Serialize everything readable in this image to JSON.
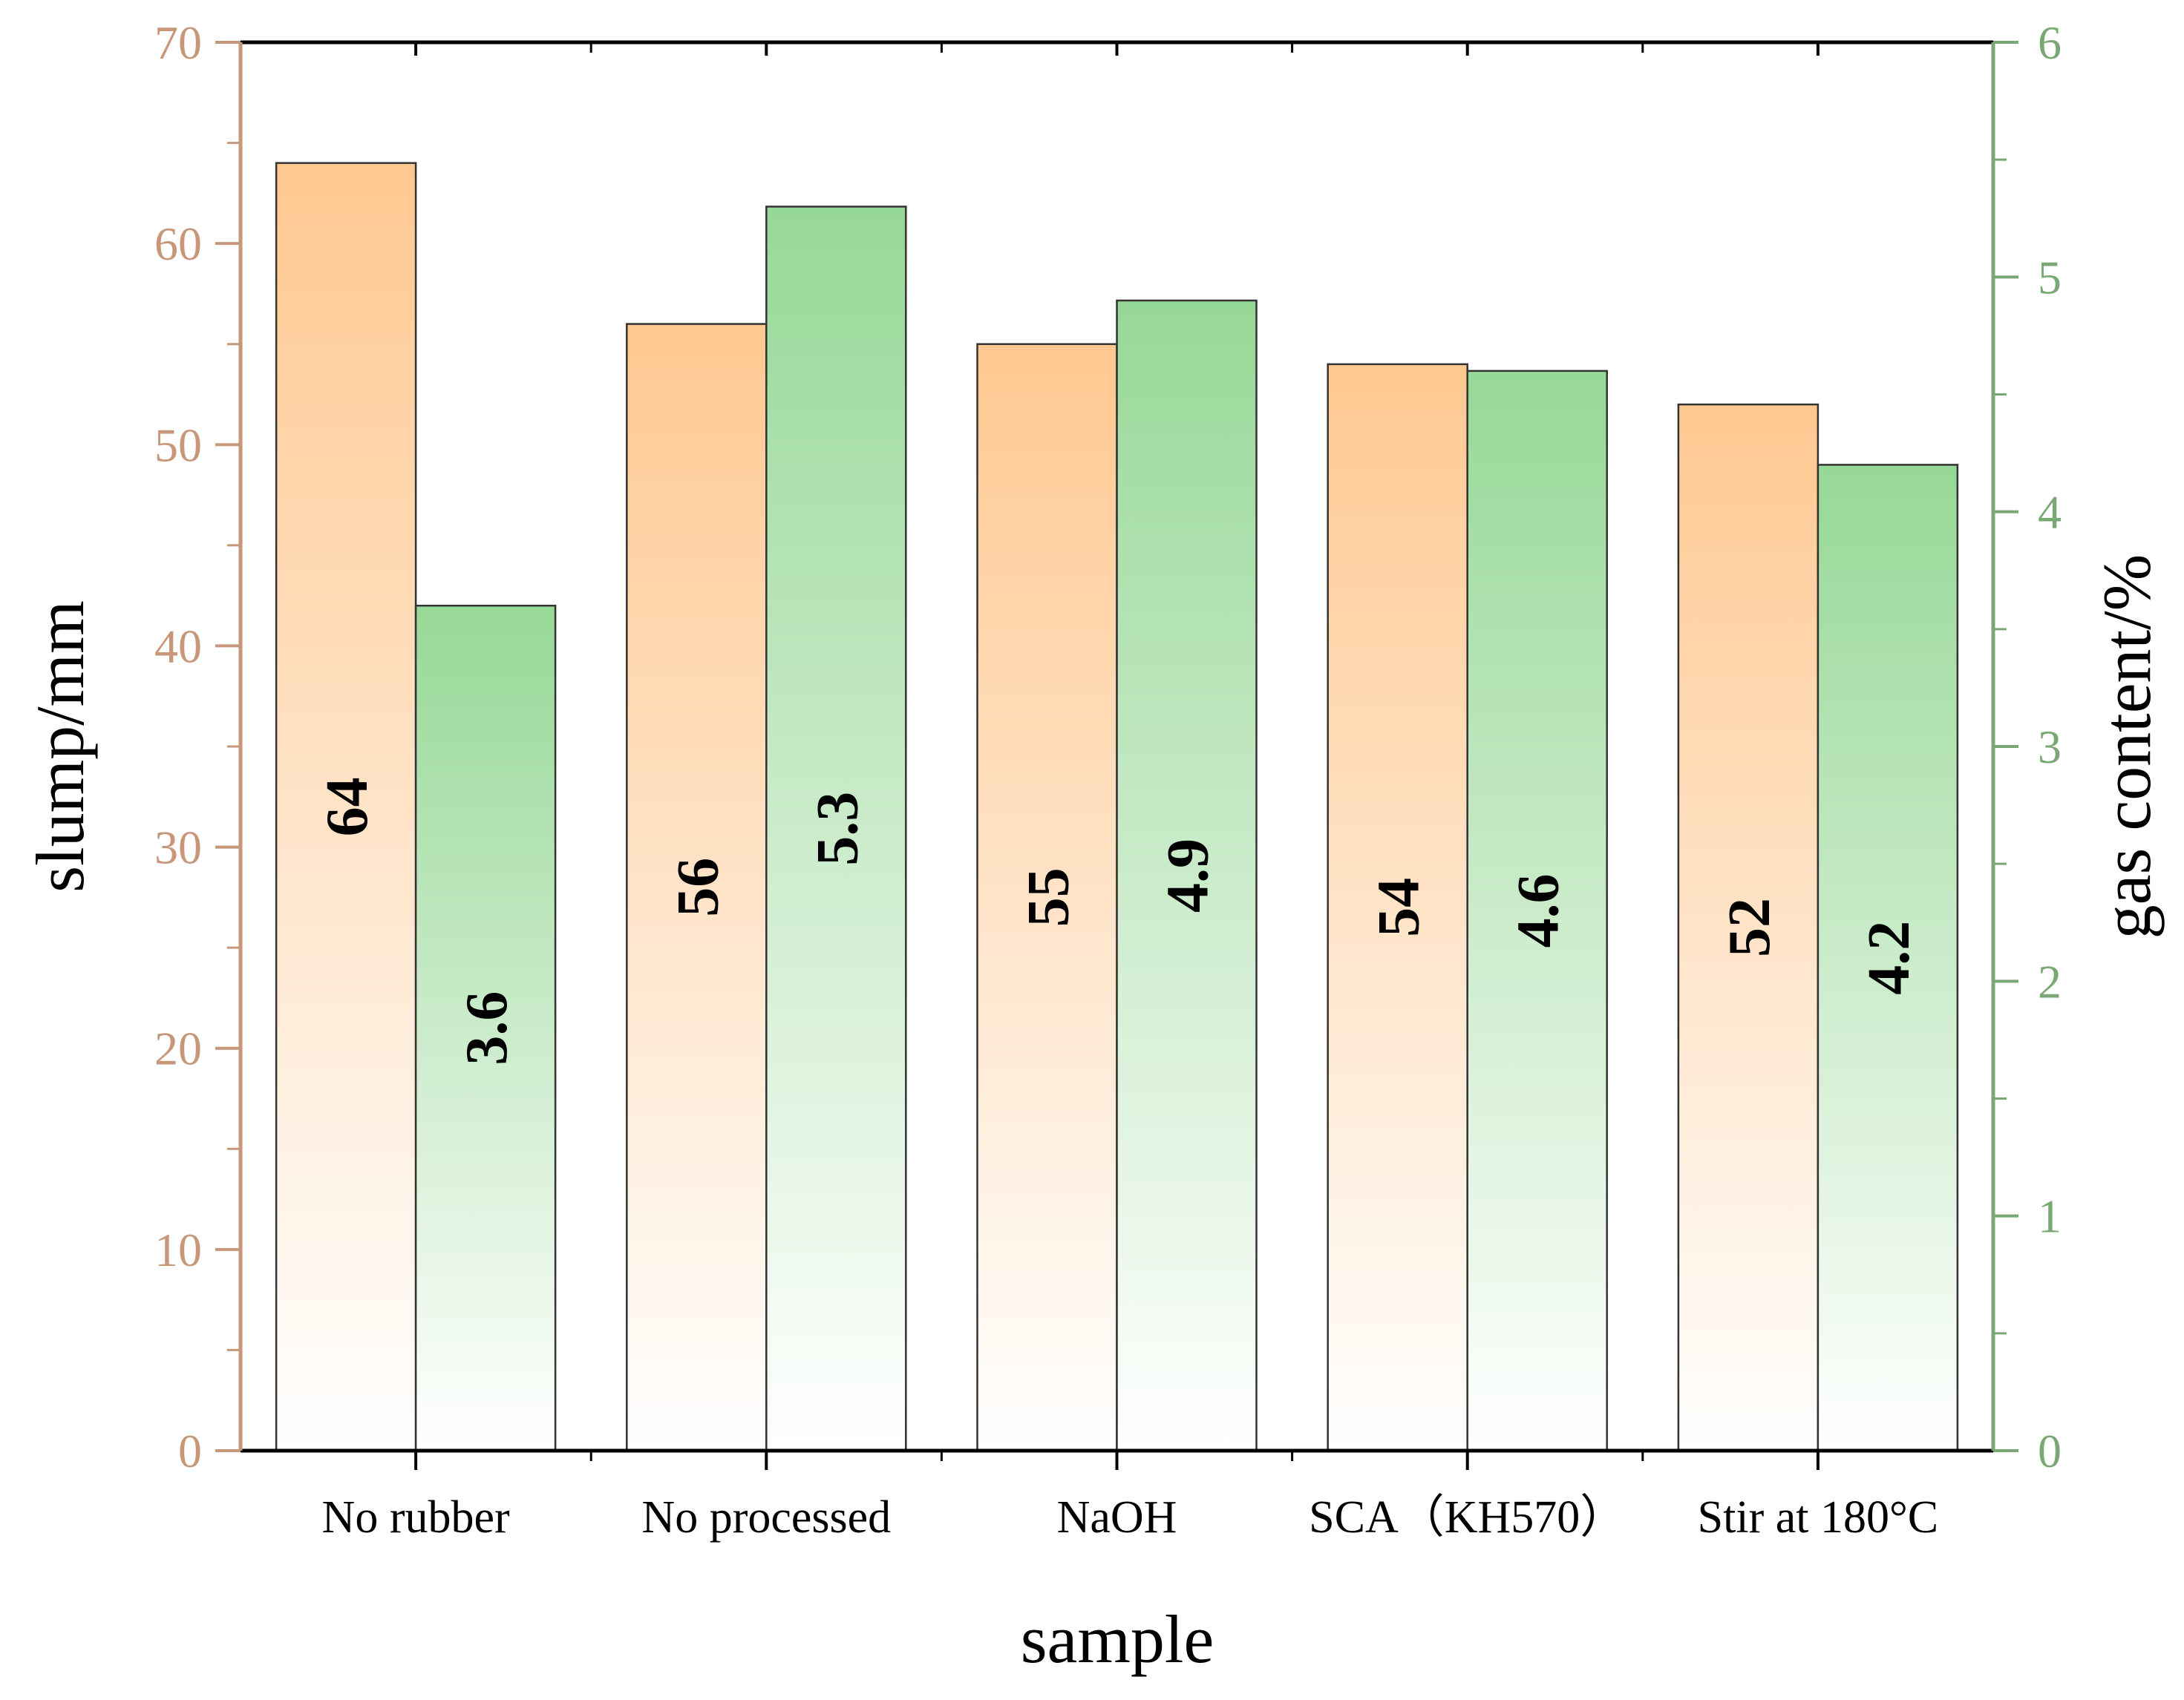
{
  "chart_data": {
    "type": "bar",
    "title": "",
    "xlabel": "sample",
    "categories": [
      "No rubber",
      "No processed",
      "NaOH",
      "SCA（KH570）",
      "Stir at 180°C"
    ],
    "series": [
      {
        "name": "slump",
        "axis": "left",
        "values": [
          64,
          56,
          55,
          54,
          52
        ],
        "labels": [
          "64",
          "56",
          "55",
          "54",
          "52"
        ],
        "color_top": "#ffc890",
        "color_bottom": "#ffffff"
      },
      {
        "name": "gas content",
        "axis": "right",
        "values": [
          3.6,
          5.3,
          4.9,
          4.6,
          4.2
        ],
        "labels": [
          "3.6",
          "5.3",
          "4.9",
          "4.6",
          "4.2"
        ],
        "color_top": "#96d896",
        "color_bottom": "#ffffff"
      }
    ],
    "y_left": {
      "label": "slump/mm",
      "min": 0,
      "max": 70,
      "ticks": [
        0,
        10,
        20,
        30,
        40,
        50,
        60,
        70
      ],
      "tick_labels": [
        "0",
        "10",
        "20",
        "30",
        "40",
        "50",
        "60",
        "70"
      ],
      "color": "#c8977a"
    },
    "y_right": {
      "label": "gas content/%",
      "min": 0,
      "max": 6,
      "ticks": [
        0,
        1,
        2,
        3,
        4,
        5,
        6
      ],
      "tick_labels": [
        "0",
        "1",
        "2",
        "3",
        "4",
        "5",
        "6"
      ],
      "color": "#7aa874"
    },
    "grid": false,
    "legend": "none"
  }
}
